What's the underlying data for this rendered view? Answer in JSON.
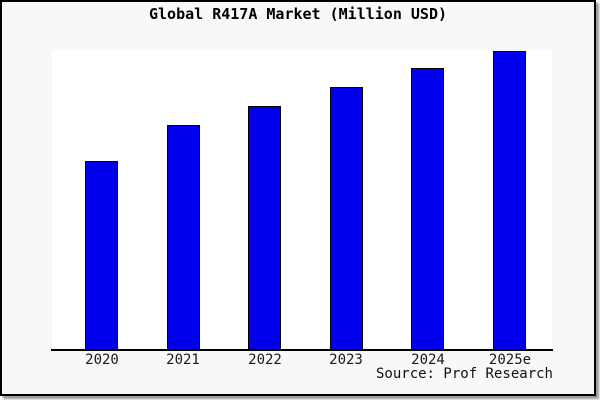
{
  "title": "Global R417A Market (Million USD)",
  "source": "Source: Prof Research",
  "chart_data": {
    "type": "bar",
    "title": "Global R417A Market (Million USD)",
    "categories": [
      "2020",
      "2021",
      "2022",
      "2023",
      "2024",
      "2025e"
    ],
    "values": [
      63.2,
      75.3,
      81.6,
      88.0,
      94.3,
      100.0
    ],
    "values_unit": "relative height, tallest bar = 100 (no y-axis scale shown)",
    "xlabel": "",
    "ylabel": "",
    "y_axis_visible": false,
    "grid": false,
    "legend": "none",
    "source_credit": "Source: Prof Research",
    "bar_color": "#0000EE",
    "bar_border_color": "#000000",
    "background_color": "#F8F8F8",
    "plot_background_color": "#FFFFFF",
    "frame_border_color": "#000000"
  }
}
